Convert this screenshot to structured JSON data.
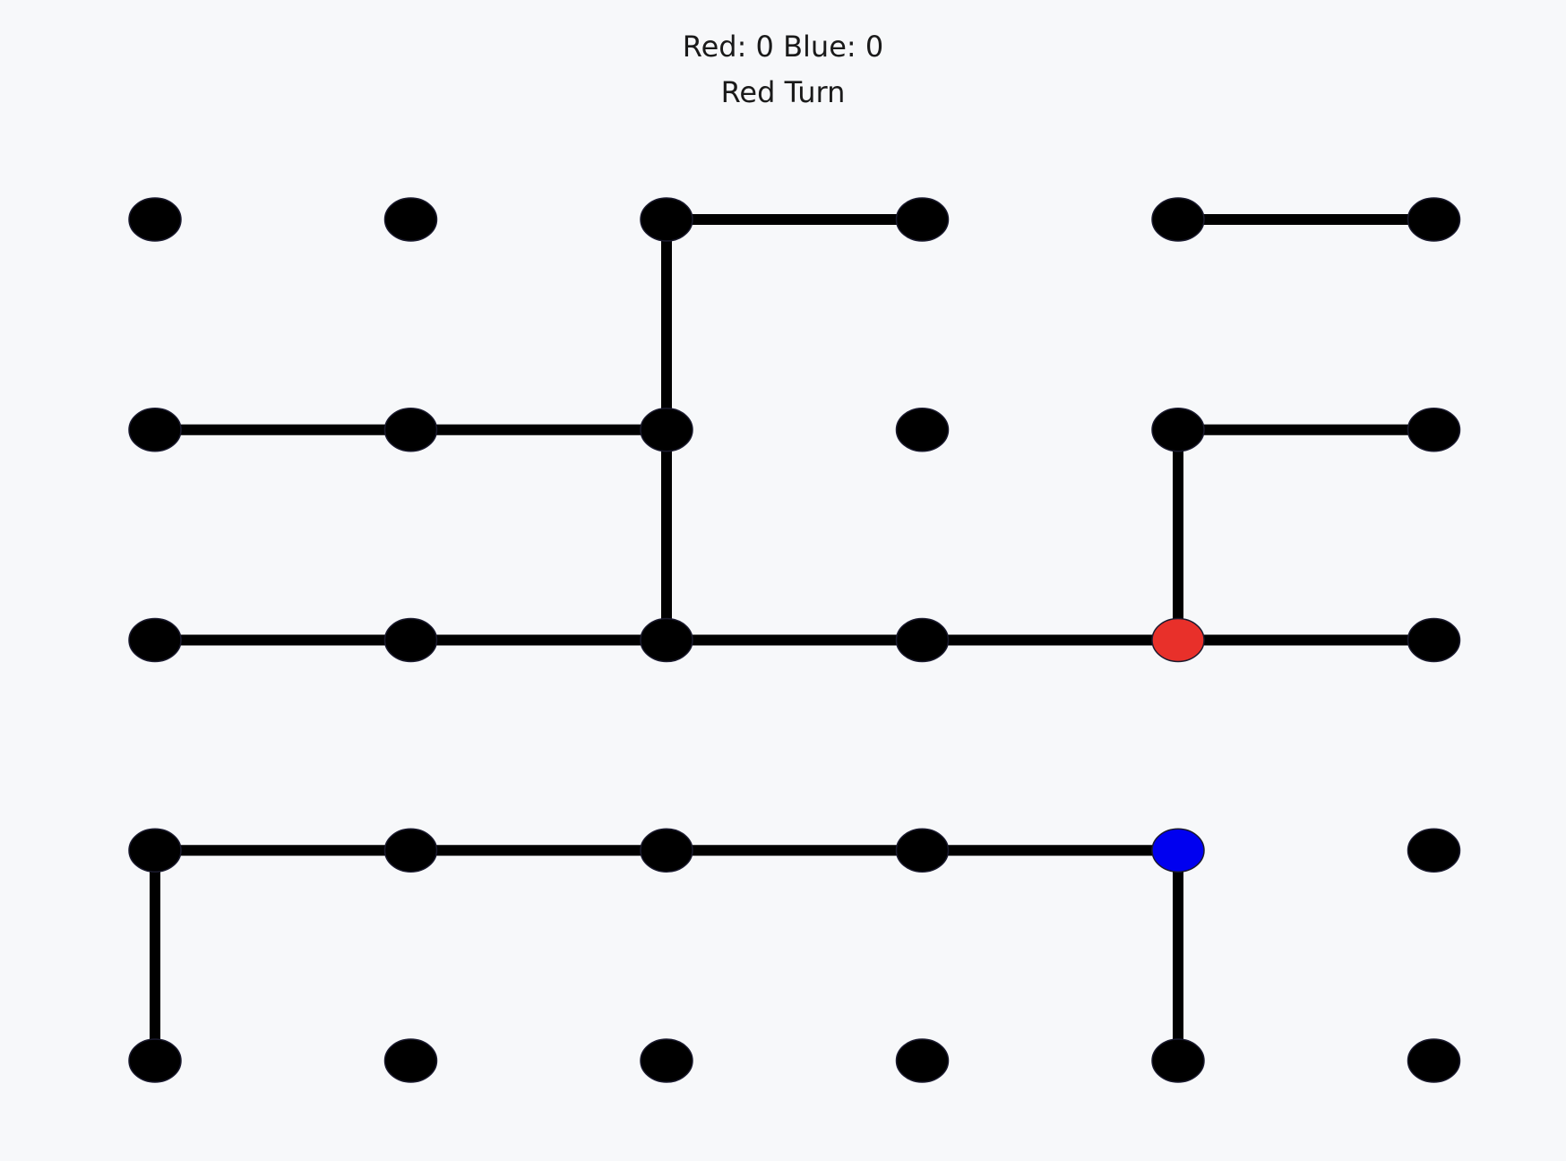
{
  "scoreboard": {
    "score_text": "Red: 0 Blue: 0",
    "turn_text": "Red Turn"
  },
  "board": {
    "columns": 6,
    "rows": 5,
    "edges": [
      {
        "from": [
          0,
          2
        ],
        "to": [
          0,
          3
        ]
      },
      {
        "from": [
          0,
          4
        ],
        "to": [
          0,
          5
        ]
      },
      {
        "from": [
          0,
          2
        ],
        "to": [
          1,
          2
        ]
      },
      {
        "from": [
          1,
          0
        ],
        "to": [
          1,
          1
        ]
      },
      {
        "from": [
          1,
          1
        ],
        "to": [
          1,
          2
        ]
      },
      {
        "from": [
          1,
          2
        ],
        "to": [
          2,
          2
        ]
      },
      {
        "from": [
          1,
          4
        ],
        "to": [
          1,
          5
        ]
      },
      {
        "from": [
          1,
          4
        ],
        "to": [
          2,
          4
        ]
      },
      {
        "from": [
          2,
          0
        ],
        "to": [
          2,
          1
        ]
      },
      {
        "from": [
          2,
          1
        ],
        "to": [
          2,
          2
        ]
      },
      {
        "from": [
          2,
          2
        ],
        "to": [
          2,
          3
        ]
      },
      {
        "from": [
          2,
          3
        ],
        "to": [
          2,
          4
        ]
      },
      {
        "from": [
          2,
          4
        ],
        "to": [
          2,
          5
        ]
      },
      {
        "from": [
          3,
          0
        ],
        "to": [
          3,
          1
        ]
      },
      {
        "from": [
          3,
          1
        ],
        "to": [
          3,
          2
        ]
      },
      {
        "from": [
          3,
          2
        ],
        "to": [
          3,
          3
        ]
      },
      {
        "from": [
          3,
          3
        ],
        "to": [
          3,
          4
        ]
      },
      {
        "from": [
          3,
          0
        ],
        "to": [
          4,
          0
        ]
      },
      {
        "from": [
          3,
          4
        ],
        "to": [
          4,
          4
        ]
      }
    ],
    "highlighted_dots": [
      {
        "cell": [
          2,
          4
        ],
        "owner": "red"
      },
      {
        "cell": [
          3,
          4
        ],
        "owner": "blue"
      }
    ]
  },
  "colors": {
    "background": "#f7f8fa",
    "line": "#000000",
    "dot": "#000000",
    "red": "#e8302a",
    "blue": "#0000f0"
  }
}
